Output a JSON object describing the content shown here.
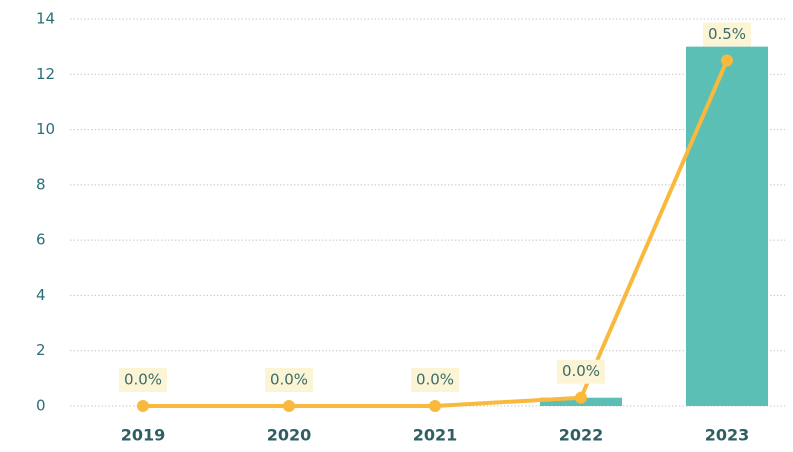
{
  "chart_data": {
    "type": "bar",
    "categories": [
      "2019",
      "2020",
      "2021",
      "2022",
      "2023"
    ],
    "series": [
      {
        "type": "bar",
        "color": "#5bbfb5",
        "values": [
          0,
          0,
          0,
          0.3,
          13
        ]
      },
      {
        "type": "line",
        "axis": "y2",
        "color": "#f9b93c",
        "values": [
          0,
          0,
          0,
          0.012,
          0.5
        ],
        "value_labels": [
          "0.0%",
          "0.0%",
          "0.0%",
          "0.0%",
          "0.5%"
        ]
      }
    ],
    "ylim": [
      0,
      14
    ],
    "yticks": [
      0,
      2,
      4,
      6,
      8,
      10,
      12,
      14
    ],
    "y2lim": [
      0,
      0.56
    ],
    "grid": true
  }
}
